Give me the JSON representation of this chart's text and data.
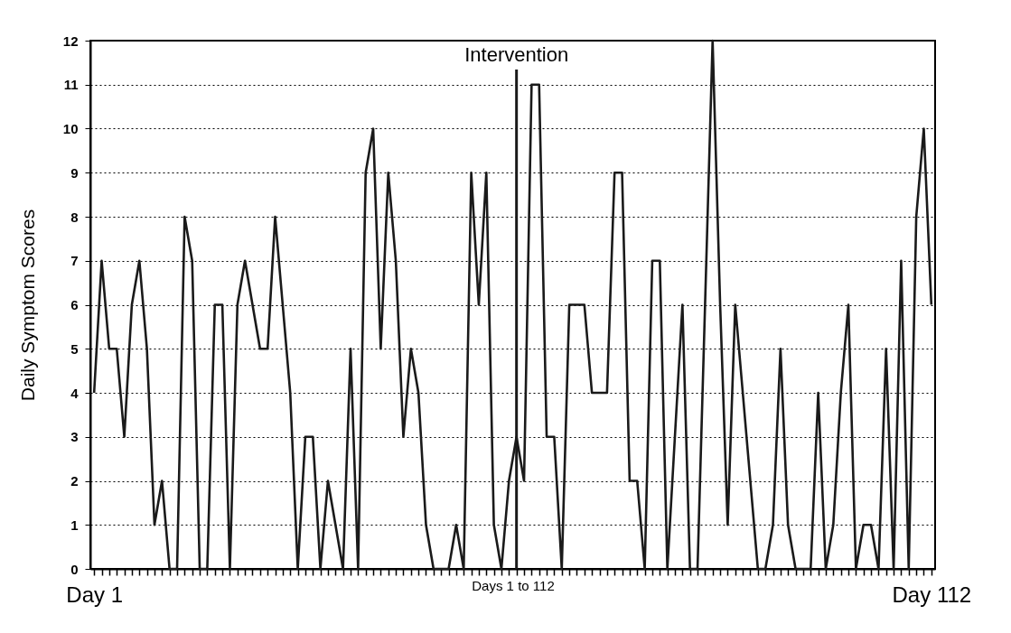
{
  "chart_data": {
    "type": "line",
    "xlabel": "Days 1 to 112",
    "ylabel": "Daily Symptom Scores",
    "categories": [
      "Day 1",
      null,
      null,
      null,
      null,
      null,
      null,
      null,
      null,
      null,
      null,
      null,
      null,
      null,
      null,
      null,
      null,
      null,
      null,
      null,
      null,
      null,
      null,
      null,
      null,
      null,
      null,
      null,
      null,
      null,
      null,
      null,
      null,
      null,
      null,
      null,
      null,
      null,
      null,
      null,
      null,
      null,
      null,
      null,
      null,
      null,
      null,
      null,
      null,
      null,
      null,
      null,
      null,
      null,
      null,
      null,
      null,
      null,
      null,
      null,
      null,
      null,
      null,
      null,
      null,
      null,
      null,
      null,
      null,
      null,
      null,
      null,
      null,
      null,
      null,
      null,
      null,
      null,
      null,
      null,
      null,
      null,
      null,
      null,
      null,
      null,
      null,
      null,
      null,
      null,
      null,
      null,
      null,
      null,
      null,
      null,
      null,
      null,
      null,
      null,
      null,
      null,
      null,
      null,
      null,
      null,
      null,
      null,
      null,
      null,
      null,
      "Day 112"
    ],
    "series": [
      {
        "color": "#1a1a1a",
        "values": [
          4,
          7,
          5,
          5,
          3,
          6,
          7,
          5,
          1,
          2,
          0,
          0,
          8,
          7,
          0,
          0,
          6,
          6,
          0,
          6,
          7,
          6,
          5,
          5,
          8,
          6,
          4,
          0,
          3,
          3,
          0,
          2,
          1,
          0,
          5,
          0,
          9,
          10,
          5,
          9,
          7,
          3,
          5,
          4,
          1,
          0,
          0,
          0,
          1,
          0,
          9,
          6,
          9,
          1,
          0,
          2,
          3,
          2,
          11,
          11,
          3,
          3,
          0,
          6,
          6,
          6,
          4,
          4,
          4,
          9,
          9,
          2,
          2,
          0,
          7,
          7,
          0,
          3,
          6,
          0,
          0,
          6,
          12,
          6,
          1,
          6,
          4,
          2,
          0,
          0,
          1,
          5,
          1,
          0,
          0,
          0,
          4,
          0,
          1,
          4,
          6,
          0,
          1,
          1,
          0,
          5,
          0,
          7,
          0,
          8,
          10,
          6
        ]
      }
    ],
    "ylim": [
      0,
      12
    ],
    "yticks": [
      0,
      1,
      2,
      3,
      4,
      5,
      6,
      7,
      8,
      9,
      10,
      11,
      12
    ],
    "grid": "y",
    "marker": "none",
    "line_style": "solid",
    "annotations": [
      "Intervention"
    ]
  }
}
